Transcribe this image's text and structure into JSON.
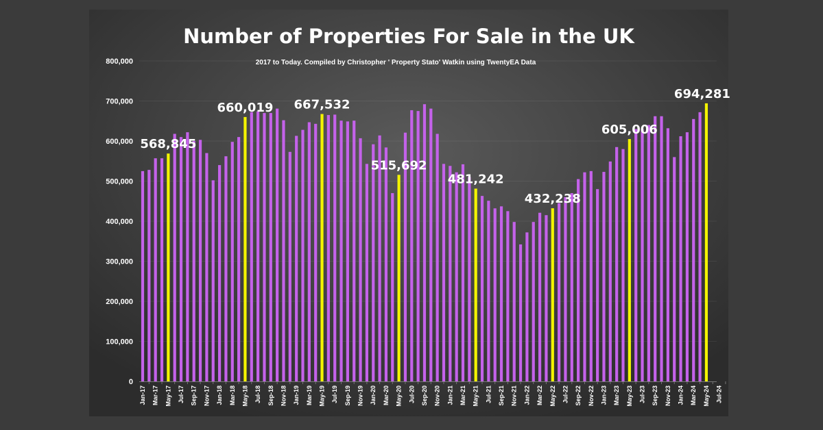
{
  "chart_data": {
    "type": "bar",
    "title": "Number of Properties For Sale in the UK",
    "subtitle": "2017 to Today. Compiled by Christopher ' Property Stato' Watkin using TwentyEA Data",
    "xlabel": "",
    "ylabel": "",
    "ylim": [
      0,
      800000
    ],
    "yticks": [
      "0",
      "100,000",
      "200,000",
      "300,000",
      "400,000",
      "500,000",
      "600,000",
      "700,000",
      "800,000"
    ],
    "grid": true,
    "legend": "none",
    "colors": {
      "normal": "#c462ea",
      "highlight": "#f4f400",
      "background": "#4a4a4a",
      "page": "#3b3b3b"
    },
    "xtick_labels": [
      "Jan-17",
      "Mar-17",
      "May-17",
      "Jul-17",
      "Sep-17",
      "Nov-17",
      "Jan-18",
      "Mar-18",
      "May-18",
      "Jul-18",
      "Sep-18",
      "Nov-18",
      "Jan-19",
      "Mar-19",
      "May-19",
      "Jul-19",
      "Sep-19",
      "Nov-19",
      "Jan-20",
      "Mar-20",
      "May-20",
      "Jul-20",
      "Sep-20",
      "Nov-20",
      "Jan-21",
      "Mar-21",
      "May-21",
      "Jul-21",
      "Sep-21",
      "Nov-21",
      "Jan-22",
      "Mar-22",
      "May-22",
      "Jul-22",
      "Sep-22",
      "Nov-22",
      "Jan-23",
      "Mar-23",
      "May-23",
      "Jul-23",
      "Sep-23",
      "Nov-23",
      "Jan-24",
      "Mar-24",
      "May-24",
      "Jul-24"
    ],
    "categories": [
      "Jan-17",
      "Feb-17",
      "Mar-17",
      "Apr-17",
      "May-17",
      "Jun-17",
      "Jul-17",
      "Aug-17",
      "Sep-17",
      "Oct-17",
      "Nov-17",
      "Dec-17",
      "Jan-18",
      "Feb-18",
      "Mar-18",
      "Apr-18",
      "May-18",
      "Jun-18",
      "Jul-18",
      "Aug-18",
      "Sep-18",
      "Oct-18",
      "Nov-18",
      "Dec-18",
      "Jan-19",
      "Feb-19",
      "Mar-19",
      "Apr-19",
      "May-19",
      "Jun-19",
      "Jul-19",
      "Aug-19",
      "Sep-19",
      "Oct-19",
      "Nov-19",
      "Dec-19",
      "Jan-20",
      "Feb-20",
      "Mar-20",
      "Apr-20",
      "May-20",
      "Jun-20",
      "Jul-20",
      "Aug-20",
      "Sep-20",
      "Oct-20",
      "Nov-20",
      "Dec-20",
      "Jan-21",
      "Feb-21",
      "Mar-21",
      "Apr-21",
      "May-21",
      "Jun-21",
      "Jul-21",
      "Aug-21",
      "Sep-21",
      "Oct-21",
      "Nov-21",
      "Dec-21",
      "Jan-22",
      "Feb-22",
      "Mar-22",
      "Apr-22",
      "May-22",
      "Jun-22",
      "Jul-22",
      "Aug-22",
      "Sep-22",
      "Oct-22",
      "Nov-22",
      "Dec-22",
      "Jan-23",
      "Feb-23",
      "Mar-23",
      "Apr-23",
      "May-23",
      "Jun-23",
      "Jul-23",
      "Aug-23",
      "Sep-23",
      "Oct-23",
      "Nov-23",
      "Dec-23",
      "Jan-24",
      "Feb-24",
      "Mar-24",
      "Apr-24",
      "May-24"
    ],
    "values": [
      525000,
      528000,
      557000,
      557000,
      568845,
      618000,
      610000,
      622000,
      600000,
      603000,
      570000,
      502000,
      540000,
      562000,
      598000,
      610000,
      660019,
      672000,
      674000,
      670000,
      670000,
      681000,
      652000,
      573000,
      613000,
      628000,
      647000,
      643000,
      667532,
      665000,
      666000,
      651000,
      649000,
      651000,
      607000,
      543000,
      592000,
      614000,
      584000,
      470000,
      515692,
      621000,
      677000,
      675000,
      692000,
      681000,
      618000,
      543000,
      538000,
      522000,
      542000,
      510000,
      481242,
      463000,
      451000,
      432000,
      437000,
      425000,
      398000,
      342000,
      372000,
      398000,
      421000,
      415000,
      432238,
      445000,
      460000,
      470000,
      505000,
      522000,
      525000,
      480000,
      523000,
      549000,
      585000,
      580000,
      605006,
      630000,
      630000,
      640000,
      662000,
      662000,
      632000,
      560000,
      612000,
      622000,
      655000,
      672000,
      694281
    ],
    "highlights": [
      {
        "category": "May-17",
        "label": "568,845"
      },
      {
        "category": "May-18",
        "label": "660,019"
      },
      {
        "category": "May-19",
        "label": "667,532"
      },
      {
        "category": "May-20",
        "label": "515,692"
      },
      {
        "category": "May-21",
        "label": "481,242"
      },
      {
        "category": "May-22",
        "label": "432,238"
      },
      {
        "category": "May-23",
        "label": "605,006"
      },
      {
        "category": "May-24",
        "label": "694,281"
      }
    ]
  }
}
